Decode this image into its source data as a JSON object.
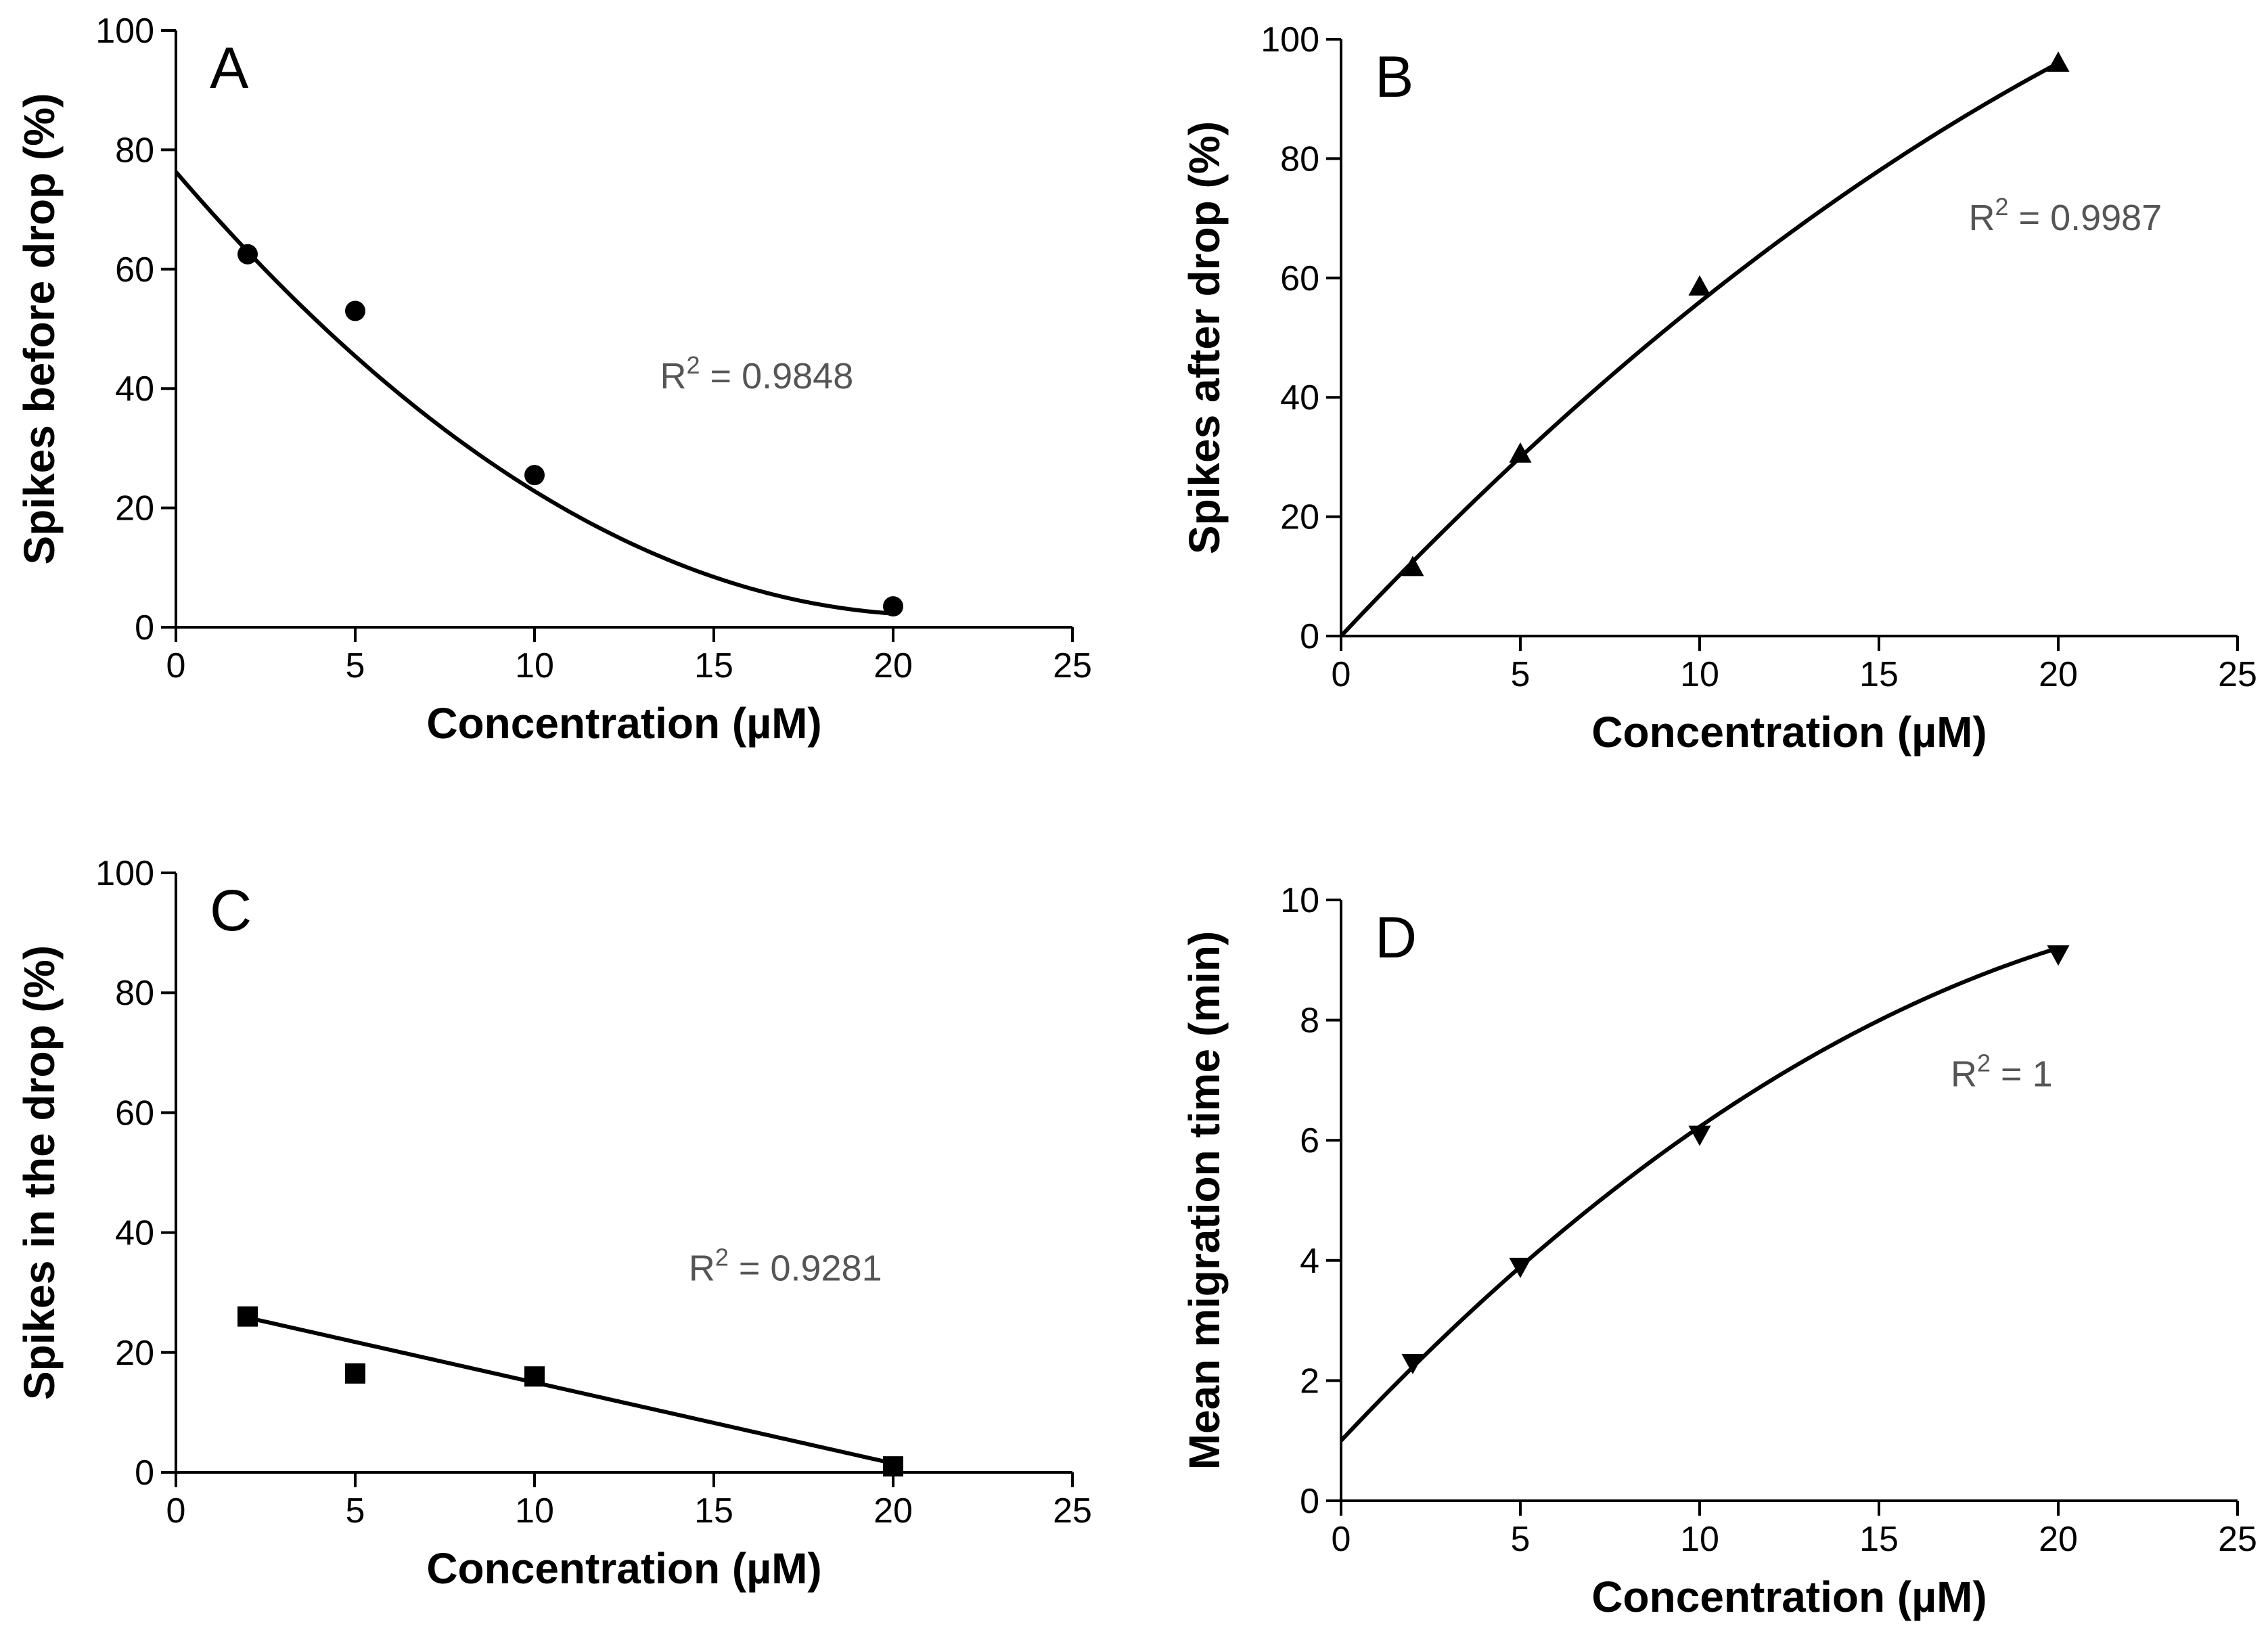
{
  "chart_data": [
    {
      "panel": "A",
      "type": "scatter",
      "marker": "circle",
      "fit": "quadratic",
      "x": [
        2,
        5,
        10,
        20
      ],
      "y": [
        62.5,
        53,
        25.5,
        3.5
      ],
      "fit_coefficients": [
        76.3,
        -7.0,
        0.165
      ],
      "fit_x_range": [
        0,
        20
      ],
      "xlabel": "Concentration (µM)",
      "ylabel": "Spikes before drop (%)",
      "xlim": [
        0,
        25
      ],
      "ylim": [
        0,
        100
      ],
      "xticks": [
        0,
        5,
        10,
        15,
        20,
        25
      ],
      "yticks": [
        0,
        20,
        40,
        60,
        80,
        100
      ],
      "r2_base": "R",
      "r2_exp": "2",
      "r2_value": " = 0.9848",
      "r2_pos": [
        13.5,
        40
      ]
    },
    {
      "panel": "B",
      "type": "scatter",
      "marker": "triangle-up",
      "fit": "quadratic",
      "x": [
        2,
        5,
        10,
        20
      ],
      "y": [
        11.5,
        30.5,
        58.5,
        96
      ],
      "fit_coefficients": [
        0,
        6.39,
        -0.0795
      ],
      "fit_x_range": [
        0,
        20
      ],
      "xlabel": "Concentration (µM)",
      "ylabel": "Spikes after drop (%)",
      "xlim": [
        0,
        25
      ],
      "ylim": [
        0,
        100
      ],
      "xticks": [
        0,
        5,
        10,
        15,
        20,
        25
      ],
      "yticks": [
        0,
        20,
        40,
        60,
        80,
        100
      ],
      "r2_base": "R",
      "r2_exp": "2",
      "r2_value": " = 0.9987",
      "r2_pos": [
        17.5,
        68
      ]
    },
    {
      "panel": "C",
      "type": "scatter",
      "marker": "square",
      "fit": "linear",
      "x": [
        2,
        5,
        10,
        20
      ],
      "y": [
        26,
        16.5,
        16,
        1
      ],
      "fit_coefficients": [
        28.5,
        -1.35
      ],
      "fit_x_range": [
        2,
        20
      ],
      "xlabel": "Concentration (µM)",
      "ylabel": "Spikes in the drop (%)",
      "xlim": [
        0,
        25
      ],
      "ylim": [
        0,
        100
      ],
      "xticks": [
        0,
        5,
        10,
        15,
        20,
        25
      ],
      "yticks": [
        0,
        20,
        40,
        60,
        80,
        100
      ],
      "r2_base": "R",
      "r2_exp": "2",
      "r2_value": " = 0.9281",
      "r2_pos": [
        14.3,
        32
      ]
    },
    {
      "panel": "D",
      "type": "scatter",
      "marker": "triangle-down",
      "fit": "quadratic",
      "x": [
        2,
        5,
        10,
        20
      ],
      "y": [
        2.3,
        3.9,
        6.1,
        9.1
      ],
      "fit_coefficients": [
        1.0,
        0.635,
        -0.01125
      ],
      "fit_x_range": [
        0,
        20
      ],
      "xlabel": "Concentration (µM)",
      "ylabel": "Mean migration time (min)",
      "xlim": [
        0,
        25
      ],
      "ylim": [
        0,
        10
      ],
      "xticks": [
        0,
        5,
        10,
        15,
        20,
        25
      ],
      "yticks": [
        0,
        2,
        4,
        6,
        8,
        10
      ],
      "r2_base": "R",
      "r2_exp": "2",
      "r2_value": " = 1",
      "r2_pos": [
        17.0,
        6.9
      ]
    }
  ]
}
